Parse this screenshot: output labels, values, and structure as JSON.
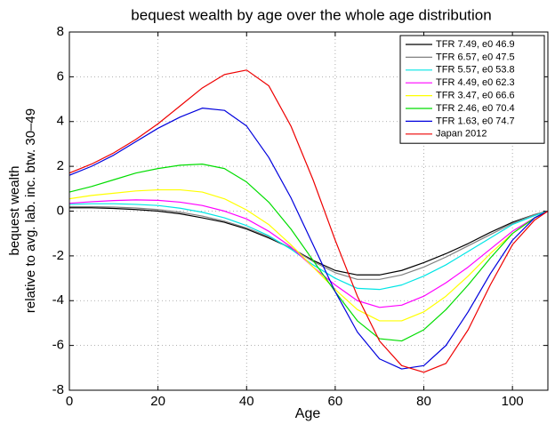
{
  "chart_data": {
    "type": "line",
    "title": "bequest wealth by age over the whole age distribution",
    "x_label": "Age",
    "y_label": [
      "bequest wealth",
      "relative to avg. lab. inc. btw. 30–49"
    ],
    "xlim": [
      0,
      108
    ],
    "ylim": [
      -8,
      8
    ],
    "xticks": [
      0,
      20,
      40,
      60,
      80,
      100
    ],
    "yticks": [
      -8,
      -6,
      -4,
      -2,
      0,
      2,
      4,
      6,
      8
    ],
    "grid": true,
    "legend": "upper right",
    "x": [
      0,
      5,
      10,
      15,
      20,
      25,
      30,
      35,
      40,
      45,
      50,
      55,
      60,
      65,
      70,
      75,
      80,
      85,
      90,
      95,
      100,
      105,
      108
    ],
    "series": [
      {
        "name": "TFR 7.49, e0 46.9",
        "color": "#000000",
        "values": [
          0.15,
          0.15,
          0.12,
          0.07,
          0.0,
          -0.12,
          -0.3,
          -0.5,
          -0.8,
          -1.2,
          -1.65,
          -2.2,
          -2.65,
          -2.85,
          -2.85,
          -2.65,
          -2.3,
          -1.9,
          -1.45,
          -0.95,
          -0.5,
          -0.15,
          0
        ]
      },
      {
        "name": "TFR 6.57, e0 47.5",
        "color": "#808080",
        "values": [
          0.2,
          0.2,
          0.18,
          0.14,
          0.07,
          -0.05,
          -0.22,
          -0.45,
          -0.75,
          -1.15,
          -1.65,
          -2.25,
          -2.75,
          -3.05,
          -3.05,
          -2.85,
          -2.5,
          -2.05,
          -1.55,
          -1.05,
          -0.55,
          -0.15,
          0
        ]
      },
      {
        "name": "TFR 5.57, e0 53.8",
        "color": "#00e5e5",
        "values": [
          0.3,
          0.33,
          0.33,
          0.3,
          0.25,
          0.13,
          -0.05,
          -0.3,
          -0.65,
          -1.1,
          -1.7,
          -2.4,
          -3.0,
          -3.45,
          -3.5,
          -3.3,
          -2.9,
          -2.4,
          -1.8,
          -1.2,
          -0.6,
          -0.2,
          0
        ]
      },
      {
        "name": "TFR 4.49, e0 62.3",
        "color": "#ff00ff",
        "values": [
          0.35,
          0.42,
          0.47,
          0.5,
          0.48,
          0.4,
          0.25,
          0.0,
          -0.35,
          -0.9,
          -1.6,
          -2.5,
          -3.3,
          -4.0,
          -4.3,
          -4.2,
          -3.8,
          -3.2,
          -2.5,
          -1.7,
          -0.9,
          -0.3,
          0
        ]
      },
      {
        "name": "TFR 3.47, e0 66.6",
        "color": "#ffff00",
        "values": [
          0.55,
          0.7,
          0.8,
          0.9,
          0.95,
          0.95,
          0.85,
          0.55,
          0.05,
          -0.6,
          -1.5,
          -2.5,
          -3.5,
          -4.4,
          -4.9,
          -4.9,
          -4.5,
          -3.8,
          -2.9,
          -1.9,
          -1.0,
          -0.3,
          0
        ]
      },
      {
        "name": "TFR 2.46, e0 70.4",
        "color": "#00dd00",
        "values": [
          0.85,
          1.1,
          1.4,
          1.7,
          1.9,
          2.05,
          2.1,
          1.9,
          1.3,
          0.4,
          -0.8,
          -2.2,
          -3.6,
          -4.9,
          -5.7,
          -5.8,
          -5.3,
          -4.4,
          -3.3,
          -2.1,
          -1.0,
          -0.3,
          0
        ]
      },
      {
        "name": "TFR 1.63, e0 74.7",
        "color": "#0000dd",
        "values": [
          1.6,
          2.0,
          2.5,
          3.1,
          3.7,
          4.2,
          4.6,
          4.5,
          3.8,
          2.4,
          0.6,
          -1.5,
          -3.6,
          -5.4,
          -6.6,
          -7.05,
          -6.9,
          -6.0,
          -4.5,
          -2.8,
          -1.3,
          -0.3,
          0
        ]
      },
      {
        "name": "Japan 2012",
        "color": "#ee0000",
        "values": [
          1.7,
          2.1,
          2.6,
          3.2,
          3.9,
          4.7,
          5.5,
          6.1,
          6.3,
          5.6,
          3.8,
          1.4,
          -1.3,
          -3.8,
          -5.8,
          -6.9,
          -7.2,
          -6.8,
          -5.3,
          -3.3,
          -1.5,
          -0.4,
          0
        ]
      }
    ]
  }
}
